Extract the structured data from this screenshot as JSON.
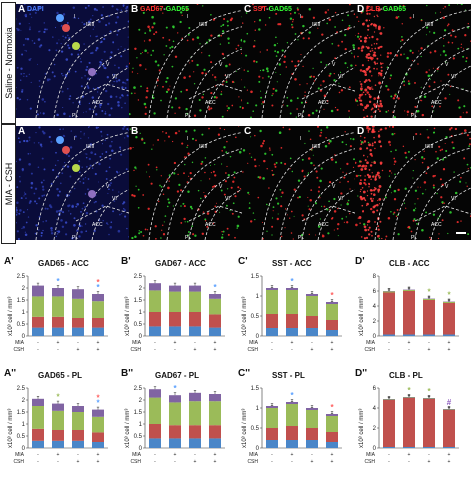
{
  "images": {
    "row_labels": [
      "Saline - Normoxia",
      "MIA - CSH"
    ],
    "panels": [
      {
        "letter": "A",
        "stains": [
          {
            "text": "DAPI",
            "color": "#4a7cff"
          }
        ]
      },
      {
        "letter": "B",
        "stains": [
          {
            "text": "GAD67",
            "color": "#ff3030"
          },
          {
            "text": "-",
            "color": "#ffffff"
          },
          {
            "text": "GAD65",
            "color": "#33ff33"
          }
        ]
      },
      {
        "letter": "C",
        "stains": [
          {
            "text": "SST",
            "color": "#ff3030"
          },
          {
            "text": "-",
            "color": "#ffffff"
          },
          {
            "text": "GAD65",
            "color": "#33ff33"
          }
        ]
      },
      {
        "letter": "D",
        "stains": [
          {
            "text": "CLB",
            "color": "#ff3030"
          },
          {
            "text": "-",
            "color": "#ffffff"
          },
          {
            "text": "GAD65",
            "color": "#33ff33"
          }
        ]
      }
    ],
    "region_labels": {
      "layer_1": "I",
      "layer_23": "II/III",
      "layer_5": "V",
      "layer_6": "VI",
      "acc": "ACC",
      "pl": "PL"
    },
    "marker_colors": [
      "#5aa0ff",
      "#e05050",
      "#b8d84a",
      "#9070c0"
    ]
  },
  "colors": {
    "layer_1": "#4a86c8",
    "layer_23": "#c0504d",
    "layer_5": "#9bbb59",
    "layer_6": "#8064a2",
    "star": "#5aa0ff",
    "asterisk_red": "#ff6060",
    "hash_green": "#9bbb59",
    "hash_purple": "#9060c0"
  },
  "condition_labels": {
    "mia": "MIA",
    "csh": "CSH"
  },
  "chart_data": [
    {
      "type": "bar",
      "stacked": true,
      "letter": "A'",
      "title": "GAD65 - ACC",
      "ylabel": "x10³ cell / mm³",
      "ylim": [
        0,
        2.5
      ],
      "yticks": [
        "0",
        "0.5",
        "1",
        "1.5",
        "2",
        "2.5"
      ],
      "mia": [
        "-",
        "+",
        "-",
        "+"
      ],
      "csh": [
        "-",
        "-",
        "+",
        "+"
      ],
      "series": [
        {
          "values": [
            0.35,
            0.35,
            0.35,
            0.35
          ]
        },
        {
          "values": [
            0.45,
            0.45,
            0.4,
            0.4
          ]
        },
        {
          "values": [
            0.85,
            0.85,
            0.8,
            0.7
          ]
        },
        {
          "values": [
            0.45,
            0.35,
            0.4,
            0.3
          ]
        }
      ],
      "marks": [
        {
          "bar": 1,
          "text": "*",
          "color": "#5aa0ff"
        },
        {
          "bar": 3,
          "text": "*",
          "color": "#5aa0ff"
        },
        {
          "bar": 3,
          "text": "*",
          "color": "#ff6060"
        }
      ]
    },
    {
      "type": "bar",
      "stacked": true,
      "letter": "B'",
      "title": "GAD67 - ACC",
      "ylabel": "x10³ cell / mm³",
      "ylim": [
        0,
        2.5
      ],
      "yticks": [
        "0",
        "0.5",
        "1",
        "1.5",
        "2",
        "2.5"
      ],
      "mia": [
        "-",
        "+",
        "-",
        "+"
      ],
      "csh": [
        "-",
        "-",
        "+",
        "+"
      ],
      "series": [
        {
          "values": [
            0.4,
            0.4,
            0.4,
            0.35
          ]
        },
        {
          "values": [
            0.6,
            0.6,
            0.6,
            0.55
          ]
        },
        {
          "values": [
            0.9,
            0.85,
            0.85,
            0.65
          ]
        },
        {
          "values": [
            0.3,
            0.25,
            0.25,
            0.2
          ]
        }
      ],
      "marks": [
        {
          "bar": 3,
          "text": "*",
          "color": "#5aa0ff"
        }
      ]
    },
    {
      "type": "bar",
      "stacked": true,
      "letter": "C'",
      "title": "SST - ACC",
      "ylabel": "x10³ cell / mm³",
      "ylim": [
        0,
        1.5
      ],
      "yticks": [
        "0",
        "0.5",
        "1",
        "1.5"
      ],
      "mia": [
        "-",
        "+",
        "-",
        "+"
      ],
      "csh": [
        "-",
        "-",
        "+",
        "+"
      ],
      "series": [
        {
          "values": [
            0.2,
            0.2,
            0.2,
            0.15
          ]
        },
        {
          "values": [
            0.35,
            0.35,
            0.3,
            0.25
          ]
        },
        {
          "values": [
            0.6,
            0.6,
            0.5,
            0.4
          ]
        },
        {
          "values": [
            0.05,
            0.05,
            0.05,
            0.05
          ]
        }
      ],
      "marks": [
        {
          "bar": 1,
          "text": "*",
          "color": "#5aa0ff"
        },
        {
          "bar": 3,
          "text": "*",
          "color": "#ff6060"
        }
      ]
    },
    {
      "type": "bar",
      "stacked": true,
      "letter": "D'",
      "title": "CLB - ACC",
      "ylabel": "x10³ cell / mm³",
      "ylim": [
        0,
        8
      ],
      "yticks": [
        "0",
        "2",
        "4",
        "6",
        "8"
      ],
      "mia": [
        "-",
        "+",
        "-",
        "+"
      ],
      "csh": [
        "-",
        "-",
        "+",
        "+"
      ],
      "series": [
        {
          "values": [
            0.2,
            0.2,
            0.2,
            0.2
          ]
        },
        {
          "values": [
            5.6,
            5.8,
            4.6,
            4.2
          ]
        },
        {
          "values": [
            0.15,
            0.15,
            0.15,
            0.15
          ]
        },
        {
          "values": [
            0.05,
            0.05,
            0.05,
            0.05
          ]
        }
      ],
      "marks": [
        {
          "bar": 2,
          "text": "*",
          "color": "#9bbb59"
        },
        {
          "bar": 3,
          "text": "*",
          "color": "#9bbb59"
        }
      ]
    },
    {
      "type": "bar",
      "stacked": true,
      "letter": "A''",
      "title": "GAD65 - PL",
      "ylabel": "x10³ cell / mm³",
      "ylim": [
        0,
        2.5
      ],
      "yticks": [
        "0",
        "0.5",
        "1",
        "1.5",
        "2",
        "2.5"
      ],
      "mia": [
        "-",
        "+",
        "-",
        "+"
      ],
      "csh": [
        "-",
        "-",
        "+",
        "+"
      ],
      "series": [
        {
          "values": [
            0.3,
            0.3,
            0.3,
            0.25
          ]
        },
        {
          "values": [
            0.5,
            0.45,
            0.45,
            0.4
          ]
        },
        {
          "values": [
            0.95,
            0.8,
            0.75,
            0.65
          ]
        },
        {
          "values": [
            0.3,
            0.3,
            0.25,
            0.3
          ]
        }
      ],
      "marks": [
        {
          "bar": 1,
          "text": "*",
          "color": "#9bbb59"
        },
        {
          "bar": 3,
          "text": "*",
          "color": "#5aa0ff"
        },
        {
          "bar": 3,
          "text": "*",
          "color": "#ff6060"
        }
      ]
    },
    {
      "type": "bar",
      "stacked": true,
      "letter": "B''",
      "title": "GAD67 - PL",
      "ylabel": "x10³ cell / mm³",
      "ylim": [
        0,
        2.5
      ],
      "yticks": [
        "0",
        "0.5",
        "1",
        "1.5",
        "2",
        "2.5"
      ],
      "mia": [
        "-",
        "+",
        "-",
        "+"
      ],
      "csh": [
        "-",
        "-",
        "+",
        "+"
      ],
      "series": [
        {
          "values": [
            0.4,
            0.4,
            0.4,
            0.4
          ]
        },
        {
          "values": [
            0.6,
            0.55,
            0.55,
            0.55
          ]
        },
        {
          "values": [
            1.1,
            0.95,
            1.0,
            1.0
          ]
        },
        {
          "values": [
            0.35,
            0.3,
            0.35,
            0.3
          ]
        }
      ],
      "marks": [
        {
          "bar": 1,
          "text": "*",
          "color": "#5aa0ff"
        }
      ]
    },
    {
      "type": "bar",
      "stacked": true,
      "letter": "C''",
      "title": "SST - PL",
      "ylabel": "x10³ cell / mm³",
      "ylim": [
        0,
        1.5
      ],
      "yticks": [
        "0",
        "0.5",
        "1",
        "1.5"
      ],
      "mia": [
        "-",
        "+",
        "-",
        "+"
      ],
      "csh": [
        "-",
        "-",
        "+",
        "+"
      ],
      "series": [
        {
          "values": [
            0.2,
            0.2,
            0.2,
            0.15
          ]
        },
        {
          "values": [
            0.3,
            0.35,
            0.3,
            0.25
          ]
        },
        {
          "values": [
            0.5,
            0.55,
            0.45,
            0.4
          ]
        },
        {
          "values": [
            0.05,
            0.05,
            0.05,
            0.05
          ]
        }
      ],
      "marks": [
        {
          "bar": 1,
          "text": "*",
          "color": "#5aa0ff"
        },
        {
          "bar": 3,
          "text": "*",
          "color": "#ff6060"
        }
      ]
    },
    {
      "type": "bar",
      "stacked": true,
      "letter": "D''",
      "title": "CLB - PL",
      "ylabel": "x10³ cell / mm³",
      "ylim": [
        0,
        6
      ],
      "yticks": [
        "0",
        "2",
        "4",
        "6"
      ],
      "mia": [
        "-",
        "+",
        "-",
        "+"
      ],
      "csh": [
        "-",
        "-",
        "+",
        "+"
      ],
      "series": [
        {
          "values": [
            0.1,
            0.1,
            0.1,
            0.1
          ]
        },
        {
          "values": [
            4.7,
            4.9,
            4.8,
            3.7
          ]
        },
        {
          "values": [
            0.05,
            0.05,
            0.05,
            0.05
          ]
        },
        {
          "values": [
            0.05,
            0.05,
            0.05,
            0.05
          ]
        }
      ],
      "marks": [
        {
          "bar": 1,
          "text": "*",
          "color": "#9bbb59"
        },
        {
          "bar": 2,
          "text": "*",
          "color": "#9bbb59"
        },
        {
          "bar": 3,
          "text": "#",
          "color": "#9060c0"
        }
      ]
    }
  ]
}
